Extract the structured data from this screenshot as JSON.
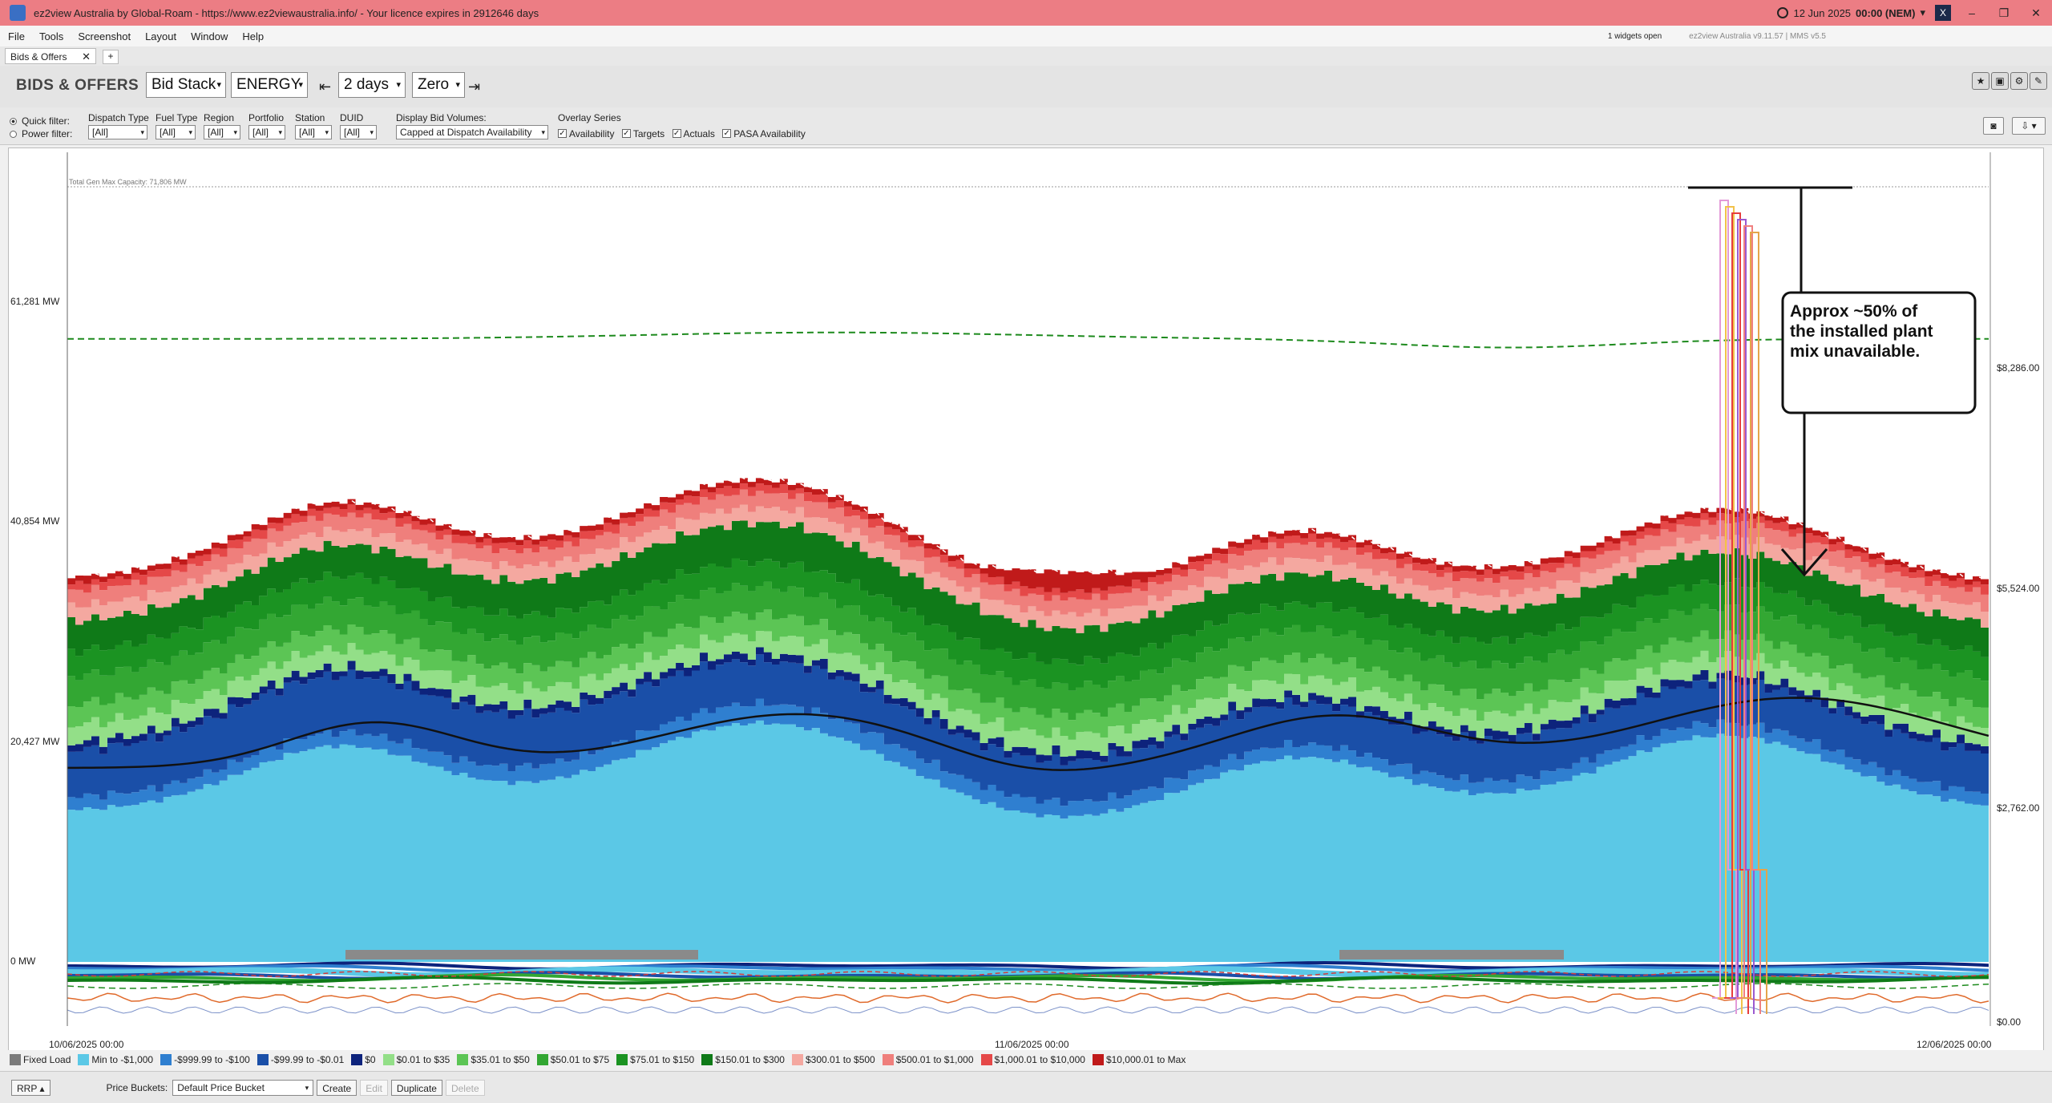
{
  "titlebar": {
    "title": "ez2view Australia by Global-Roam - https://www.ez2viewaustralia.info/ - Your licence expires in 2912646 days",
    "clock_date": "12 Jun 2025",
    "clock_time": "00:00 (NEM)",
    "minimize": "–",
    "restore": "❐",
    "close": "✕"
  },
  "menu": {
    "items": [
      "File",
      "Tools",
      "Screenshot",
      "Layout",
      "Window",
      "Help"
    ],
    "widgets_open": "1 widgets open",
    "version": "ez2view Australia v9.11.57 | MMS v5.5"
  },
  "tabs": {
    "active": "Bids & Offers",
    "close": "✕",
    "add": "+"
  },
  "toolbar": {
    "title": "BIDS & OFFERS",
    "view_select": "Bid Stack",
    "market_select": "ENERGY",
    "duration_select": "2 days",
    "baseline_select": "Zero",
    "step_back": "⇤",
    "step_forward": "⇥"
  },
  "filters": {
    "quick_filter": "Quick filter:",
    "power_filter": "Power filter:",
    "groups": [
      {
        "label": "Dispatch Type",
        "value": "[All]"
      },
      {
        "label": "Fuel Type",
        "value": "[All]"
      },
      {
        "label": "Region",
        "value": "[All]"
      },
      {
        "label": "Portfolio",
        "value": "[All]"
      },
      {
        "label": "Station",
        "value": "[All]"
      },
      {
        "label": "DUID",
        "value": "[All]"
      }
    ],
    "bid_volumes_label": "Display Bid Volumes:",
    "bid_volumes_value": "Capped at Dispatch Availability",
    "overlay_label": "Overlay Series",
    "overlays": [
      "Availability",
      "Targets",
      "Actuals",
      "PASA Availability"
    ],
    "check_mark": "✓"
  },
  "chart_data": {
    "type": "area",
    "subtype": "stacked-area",
    "header_note": "Total Gen Max Capacity: 71,806 MW",
    "y_left_ticks": [
      "61,281 MW",
      "40,854 MW",
      "20,427 MW",
      "0 MW"
    ],
    "y_left_values": [
      61281,
      40854,
      20427,
      0
    ],
    "y_right_ticks": [
      "$8,286.00",
      "$5,524.00",
      "$2,762.00",
      "$0.00"
    ],
    "y_right_values": [
      8286,
      5524,
      2762,
      0
    ],
    "x_ticks": [
      "10/06/2025 00:00",
      "11/06/2025 00:00",
      "12/06/2025 00:00"
    ],
    "annotation": "Approx ~50% of the installed plant mix unavailable.",
    "price_bands": [
      {
        "name": "Fixed Load",
        "color": "#7a7a7a"
      },
      {
        "name": "Min to -$1,000",
        "color": "#5bc8e6"
      },
      {
        "name": "-$999.99 to -$100",
        "color": "#2f7fd0"
      },
      {
        "name": "-$99.99 to -$0.01",
        "color": "#1a4fa8"
      },
      {
        "name": "$0",
        "color": "#0d237c"
      },
      {
        "name": "$0.01 to $35",
        "color": "#93df88"
      },
      {
        "name": "$35.01 to $50",
        "color": "#5cc555"
      },
      {
        "name": "$50.01 to $75",
        "color": "#33a733"
      },
      {
        "name": "$75.01 to $150",
        "color": "#1b9322"
      },
      {
        "name": "$150.01 to $300",
        "color": "#0f7a18"
      },
      {
        "name": "$300.01 to $500",
        "color": "#f4a8a0"
      },
      {
        "name": "$500.01 to $1,000",
        "color": "#ef7f7c"
      },
      {
        "name": "$1,000.01 to $10,000",
        "color": "#e54848"
      },
      {
        "name": "$10,000.01 to Max",
        "color": "#c01a1a"
      }
    ]
  },
  "bottom": {
    "rrp": "RRP",
    "price_buckets_label": "Price Buckets:",
    "price_bucket_value": "Default Price Bucket",
    "create": "Create",
    "edit": "Edit",
    "duplicate": "Duplicate",
    "delete": "Delete"
  }
}
